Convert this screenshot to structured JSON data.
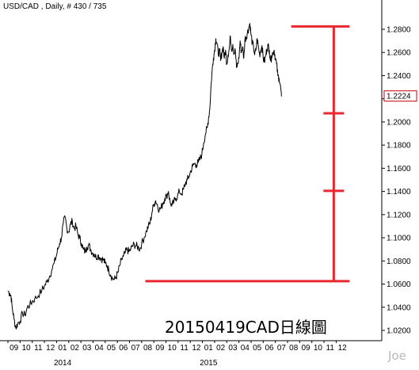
{
  "header": {
    "title": "USD/CAD , Daily, # 430 / 735"
  },
  "annotation": "20150419CAD日線圖",
  "watermark": "Joe",
  "colors": {
    "price_line": "#000000",
    "overlay": "#e8282e",
    "price_tag_border": "#cc0000",
    "axis": "#000000"
  },
  "chart_data": {
    "type": "line",
    "title": "USD/CAD , Daily, # 430 / 735",
    "instrument": "USD/CAD",
    "timeframe": "Daily",
    "ylim": [
      1.01,
      1.2925
    ],
    "yticks": [
      "1.2800",
      "1.2600",
      "1.2400",
      "1.2200",
      "1.2000",
      "1.1800",
      "1.1600",
      "1.1400",
      "1.1200",
      "1.1000",
      "1.0800",
      "1.0600",
      "1.0400",
      "1.0200"
    ],
    "last_price": "1.2224",
    "x_month_labels": [
      "09",
      "10",
      "11",
      "12",
      "01",
      "02",
      "03",
      "04",
      "05",
      "06",
      "07",
      "08",
      "09",
      "10",
      "11",
      "12",
      "01",
      "02",
      "03",
      "04",
      "05",
      "06",
      "07",
      "08",
      "09",
      "10",
      "11",
      "12"
    ],
    "x_year_labels": [
      {
        "label": "2014",
        "month_index": 4
      },
      {
        "label": "2015",
        "month_index": 16
      }
    ],
    "series": [
      {
        "months_from_start": [
          0,
          0.15,
          0.25,
          0.35,
          0.5,
          0.65,
          0.8,
          1.0,
          1.2,
          1.4,
          1.6,
          1.8,
          2.0,
          2.2,
          2.5,
          2.8,
          3.0,
          3.2,
          3.4,
          3.6,
          3.8,
          4.0,
          4.1,
          4.25,
          4.4,
          4.55,
          4.7,
          4.85,
          5.0,
          5.15,
          5.3,
          5.45,
          5.6,
          5.75,
          5.9,
          6.05,
          6.2,
          6.35,
          6.5,
          6.65,
          6.8,
          6.95,
          7.1,
          7.25,
          7.4,
          7.55,
          7.7,
          7.85,
          8.0,
          8.15,
          8.3,
          8.45,
          8.6,
          8.75,
          8.9,
          9.05,
          9.2,
          9.35,
          9.5,
          9.65,
          9.8,
          9.95,
          10.1,
          10.25,
          10.4,
          10.55,
          10.7,
          10.85,
          11.0,
          11.2,
          11.4,
          11.55,
          11.7,
          11.85,
          12.0,
          12.15,
          12.3,
          12.45,
          12.6,
          12.75,
          12.9,
          13.05,
          13.2,
          13.35,
          13.5,
          13.65,
          13.8,
          13.95,
          14.1,
          14.3,
          14.45,
          14.6,
          14.75,
          14.9,
          15.05,
          15.2,
          15.35,
          15.5,
          15.65,
          15.8,
          15.95,
          16.1,
          16.25,
          16.4,
          16.5,
          16.6,
          16.7,
          16.8,
          16.9,
          17.0,
          17.1,
          17.2,
          17.3,
          17.4,
          17.5,
          17.6,
          17.7,
          17.8,
          17.9,
          18.0,
          18.1,
          18.2,
          18.3,
          18.4,
          18.5,
          18.6,
          18.7,
          18.8,
          18.9,
          19.0,
          19.1,
          19.2,
          19.3,
          19.4,
          19.5,
          19.6,
          19.7,
          19.8,
          19.9,
          20.0,
          20.1,
          20.2,
          20.3,
          20.4,
          20.5,
          20.6,
          20.7,
          20.8,
          20.9,
          21.0,
          21.1,
          21.2,
          21.3,
          21.4,
          21.5,
          21.6,
          21.7,
          21.8,
          21.9,
          22.0,
          22.1,
          22.2,
          22.3,
          22.4,
          22.5
        ],
        "values": [
          1.054,
          1.052,
          1.05,
          1.04,
          1.03,
          1.022,
          1.026,
          1.028,
          1.035,
          1.033,
          1.04,
          1.042,
          1.045,
          1.047,
          1.05,
          1.055,
          1.058,
          1.062,
          1.066,
          1.072,
          1.078,
          1.085,
          1.09,
          1.095,
          1.1,
          1.112,
          1.118,
          1.108,
          1.105,
          1.112,
          1.114,
          1.108,
          1.11,
          1.103,
          1.1,
          1.095,
          1.09,
          1.088,
          1.092,
          1.094,
          1.09,
          1.087,
          1.086,
          1.083,
          1.085,
          1.083,
          1.082,
          1.081,
          1.078,
          1.076,
          1.072,
          1.068,
          1.065,
          1.064,
          1.066,
          1.07,
          1.076,
          1.081,
          1.084,
          1.087,
          1.09,
          1.088,
          1.09,
          1.093,
          1.094,
          1.093,
          1.092,
          1.09,
          1.095,
          1.1,
          1.106,
          1.11,
          1.113,
          1.122,
          1.129,
          1.132,
          1.128,
          1.124,
          1.126,
          1.13,
          1.134,
          1.136,
          1.14,
          1.13,
          1.128,
          1.131,
          1.134,
          1.136,
          1.14,
          1.138,
          1.142,
          1.147,
          1.15,
          1.153,
          1.158,
          1.162,
          1.164,
          1.163,
          1.165,
          1.168,
          1.172,
          1.182,
          1.19,
          1.195,
          1.203,
          1.211,
          1.23,
          1.245,
          1.255,
          1.262,
          1.272,
          1.268,
          1.258,
          1.262,
          1.253,
          1.26,
          1.265,
          1.255,
          1.262,
          1.25,
          1.258,
          1.263,
          1.274,
          1.262,
          1.267,
          1.259,
          1.262,
          1.247,
          1.25,
          1.255,
          1.27,
          1.26,
          1.265,
          1.255,
          1.272,
          1.273,
          1.277,
          1.281,
          1.285,
          1.275,
          1.268,
          1.265,
          1.258,
          1.262,
          1.272,
          1.265,
          1.258,
          1.262,
          1.266,
          1.255,
          1.252,
          1.257,
          1.263,
          1.266,
          1.262,
          1.253,
          1.257,
          1.26,
          1.262,
          1.255,
          1.25,
          1.24,
          1.238,
          1.232,
          1.222
        ]
      }
    ],
    "annotations": [
      {
        "kind": "horizontal_line",
        "value": 1.2825,
        "x_range_months": [
          23.3,
          28.1
        ]
      },
      {
        "kind": "horizontal_line",
        "value": 1.0625,
        "x_range_months": [
          11.3,
          28.1
        ]
      },
      {
        "kind": "vertical_bracket",
        "value_range": [
          1.0625,
          1.2825
        ],
        "x_month": 26.8,
        "ticks": [
          1.1405,
          1.2075
        ]
      }
    ]
  }
}
